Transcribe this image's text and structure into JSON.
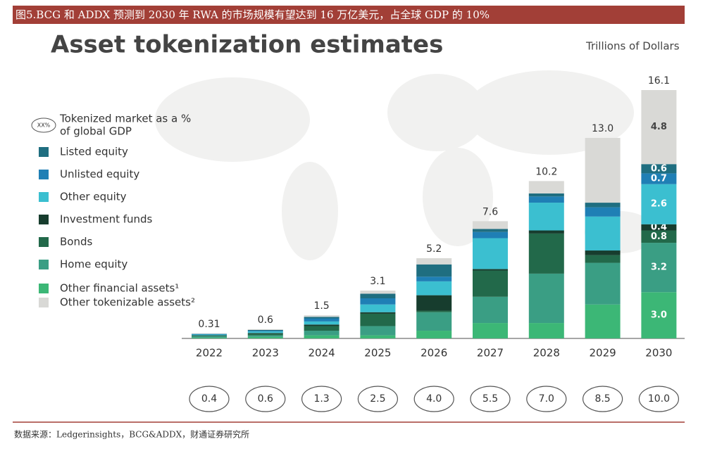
{
  "header": "图5.BCG 和 ADDX 预测到 2030 年 RWA 的市场规模有望达到 16 万亿美元，占全球 GDP 的 10%",
  "source": "数据来源：Ledgerinsights，BCG&ADDX，财通证券研究所",
  "chart_data": {
    "type": "stacked_bar",
    "title": "Asset tokenization estimates",
    "unit_label": "Trillions of Dollars",
    "categories": [
      "2022",
      "2023",
      "2024",
      "2025",
      "2026",
      "2027",
      "2028",
      "2029",
      "2030"
    ],
    "series": [
      {
        "name": "Other financial assets¹",
        "color": "#3cb776",
        "values": [
          0.05,
          0.1,
          0.2,
          0.2,
          0.5,
          1.0,
          1.0,
          2.2,
          3.0
        ],
        "value_labels": [
          null,
          null,
          null,
          null,
          null,
          null,
          null,
          null,
          "3.0"
        ]
      },
      {
        "name": "Home equity",
        "color": "#3a9e84",
        "values": [
          0.08,
          0.1,
          0.3,
          0.6,
          1.2,
          1.7,
          3.2,
          2.7,
          3.2
        ],
        "value_labels": [
          null,
          null,
          null,
          null,
          null,
          null,
          null,
          null,
          "3.2"
        ]
      },
      {
        "name": "Bonds",
        "color": "#22694a",
        "values": [
          0.05,
          0.1,
          0.3,
          0.8,
          0.1,
          1.7,
          2.6,
          0.5,
          0.8
        ],
        "value_labels": [
          null,
          null,
          null,
          null,
          null,
          null,
          null,
          null,
          "0.8"
        ]
      },
      {
        "name": "Investment funds",
        "color": "#173d2e",
        "values": [
          0.02,
          0.05,
          0.1,
          0.1,
          1.0,
          0.1,
          0.2,
          0.3,
          0.4
        ],
        "value_labels": [
          null,
          null,
          null,
          null,
          null,
          null,
          null,
          null,
          "0.4"
        ]
      },
      {
        "name": "Other equity",
        "color": "#3bbfd0",
        "values": [
          0.05,
          0.1,
          0.2,
          0.5,
          0.9,
          2.0,
          1.8,
          2.2,
          2.6
        ],
        "value_labels": [
          null,
          null,
          null,
          null,
          null,
          null,
          null,
          null,
          "2.6"
        ]
      },
      {
        "name": "Unlisted equity",
        "color": "#1f7fb5",
        "values": [
          0.03,
          0.05,
          0.2,
          0.4,
          0.3,
          0.4,
          0.4,
          0.6,
          0.7
        ],
        "value_labels": [
          null,
          null,
          null,
          null,
          null,
          null,
          null,
          null,
          "0.7"
        ]
      },
      {
        "name": "Listed equity",
        "color": "#1f6e80",
        "values": [
          0.02,
          0.05,
          0.1,
          0.3,
          0.8,
          0.2,
          0.2,
          0.3,
          0.6
        ],
        "value_labels": [
          null,
          null,
          null,
          null,
          null,
          null,
          null,
          null,
          "0.6"
        ]
      },
      {
        "name": "Other tokenizable assets²",
        "color": "#d9d9d6",
        "values": [
          0.01,
          0.05,
          0.1,
          0.2,
          0.4,
          0.5,
          0.8,
          4.2,
          4.8
        ],
        "value_labels": [
          null,
          null,
          null,
          null,
          null,
          null,
          null,
          null,
          "4.8"
        ]
      }
    ],
    "totals": {
      "values": [
        0.31,
        0.6,
        1.5,
        3.1,
        5.2,
        7.6,
        10.2,
        13.0,
        16.1
      ],
      "value_labels": [
        "0.31",
        "0.6",
        "1.5",
        "3.1",
        "5.2",
        "7.6",
        "10.2",
        "13.0",
        "16.1"
      ]
    },
    "gdp_share": {
      "legend_marker": "XX%",
      "legend_label": [
        "Tokenized market as a %",
        "of global GDP"
      ],
      "values": [
        0.4,
        0.6,
        1.3,
        2.5,
        4.0,
        5.5,
        7.0,
        8.5,
        10.0
      ],
      "value_labels": [
        "0.4",
        "0.6",
        "1.3",
        "2.5",
        "4.0",
        "5.5",
        "7.0",
        "8.5",
        "10.0"
      ]
    },
    "legend_order": [
      6,
      5,
      4,
      3,
      2,
      1,
      0,
      7
    ]
  }
}
